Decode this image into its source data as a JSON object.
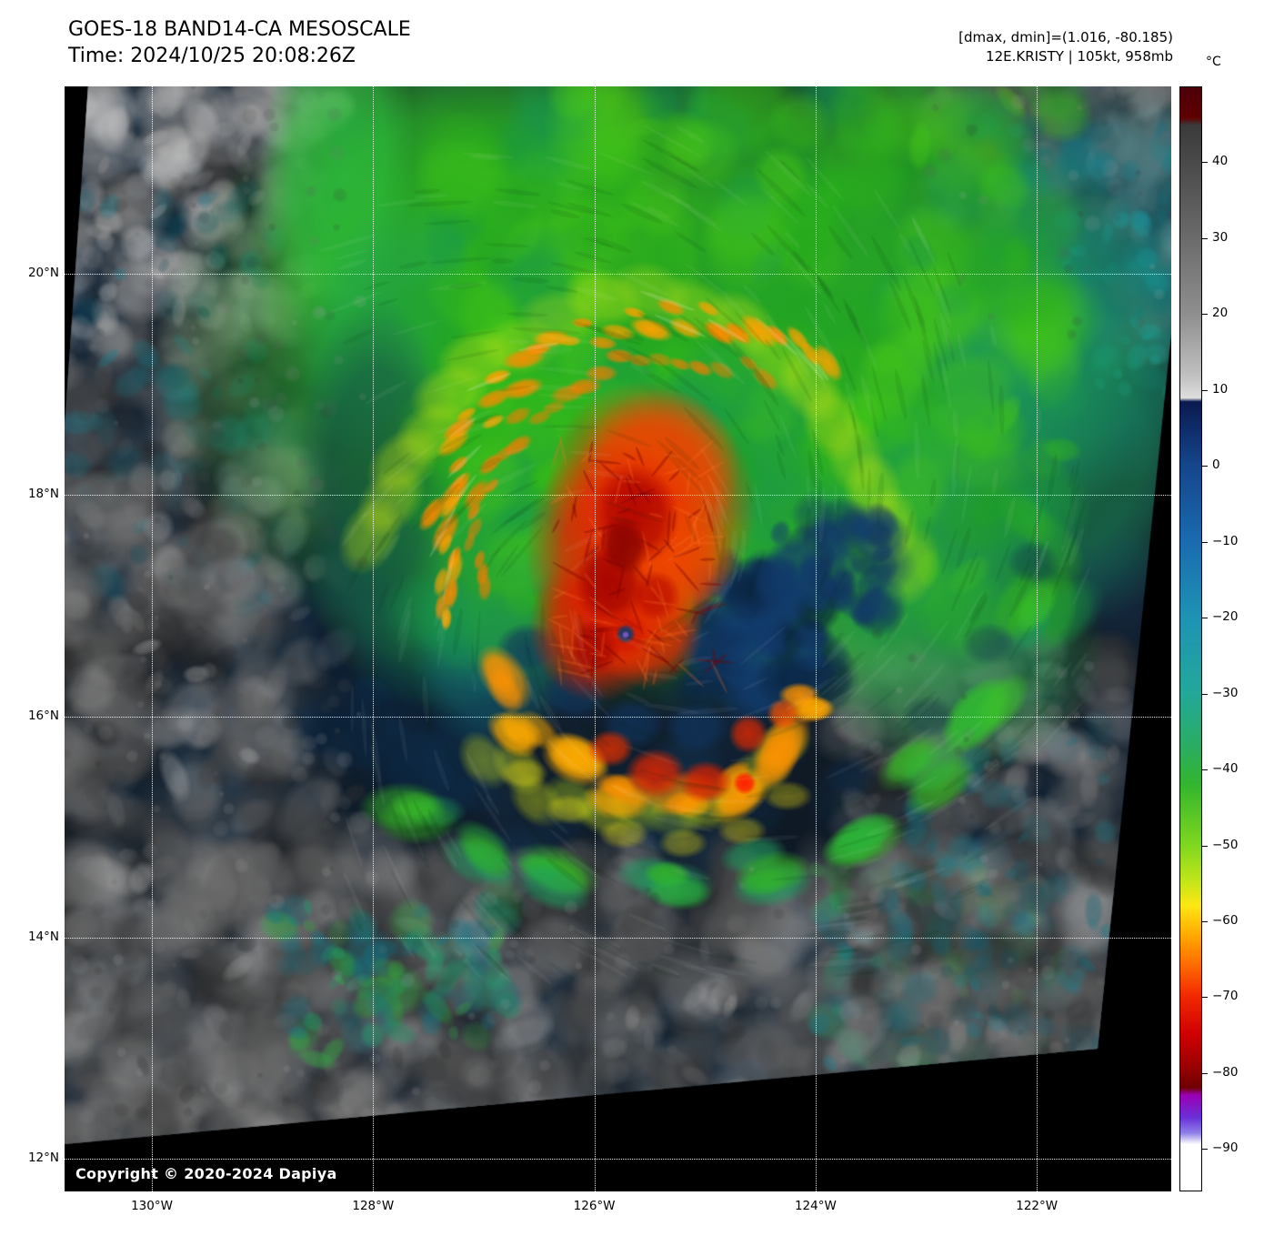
{
  "header": {
    "title": "GOES-18 BAND14-CA MESOSCALE",
    "time": "Time: 2024/10/25 20:08:26Z",
    "dmax_dmin": "[dmax, dmin]=(1.016, -80.185)",
    "storm": "12E.KRISTY | 105kt, 958mb"
  },
  "axes": {
    "lat_ticks": [
      {
        "value": 20,
        "label": "20°N"
      },
      {
        "value": 18,
        "label": "18°N"
      },
      {
        "value": 16,
        "label": "16°N"
      },
      {
        "value": 14,
        "label": "14°N"
      },
      {
        "value": 12,
        "label": "12°N"
      }
    ],
    "lon_ticks": [
      {
        "value": -130,
        "label": "130°W"
      },
      {
        "value": -128,
        "label": "128°W"
      },
      {
        "value": -126,
        "label": "126°W"
      },
      {
        "value": -124,
        "label": "124°W"
      },
      {
        "value": -122,
        "label": "122°W"
      }
    ]
  },
  "colorbar": {
    "unit": "°C",
    "domain": [
      50,
      -95.6
    ],
    "ticks": [
      40,
      30,
      20,
      10,
      0,
      -10,
      -20,
      -30,
      -40,
      -50,
      -60,
      -70,
      -80,
      -90
    ],
    "stops": [
      {
        "v": 50,
        "c": "#4a0008"
      },
      {
        "v": 46,
        "c": "#600000"
      },
      {
        "v": 45,
        "c": "#3a3a3a"
      },
      {
        "v": 40,
        "c": "#4a4a4a"
      },
      {
        "v": 30,
        "c": "#6b6b6b"
      },
      {
        "v": 20,
        "c": "#8f8f8f"
      },
      {
        "v": 12,
        "c": "#c0c0c0"
      },
      {
        "v": 9,
        "c": "#dedede"
      },
      {
        "v": 8.5,
        "c": "#0a1a50"
      },
      {
        "v": 0,
        "c": "#15468c"
      },
      {
        "v": -10,
        "c": "#1a6bb0"
      },
      {
        "v": -20,
        "c": "#1e93b4"
      },
      {
        "v": -30,
        "c": "#23a89a"
      },
      {
        "v": -37,
        "c": "#2aad62"
      },
      {
        "v": -42,
        "c": "#33b52e"
      },
      {
        "v": -50,
        "c": "#7ed71f"
      },
      {
        "v": -55,
        "c": "#c6e618"
      },
      {
        "v": -58,
        "c": "#ffe714"
      },
      {
        "v": -62,
        "c": "#ffa800"
      },
      {
        "v": -66,
        "c": "#ff6800"
      },
      {
        "v": -70,
        "c": "#f22800"
      },
      {
        "v": -75,
        "c": "#cf0000"
      },
      {
        "v": -79,
        "c": "#9e0000"
      },
      {
        "v": -82,
        "c": "#6f0000"
      },
      {
        "v": -83,
        "c": "#9a00b4"
      },
      {
        "v": -86,
        "c": "#6a30d8"
      },
      {
        "v": -88,
        "c": "#8f7fe8"
      },
      {
        "v": -89.5,
        "c": "#ffffff"
      },
      {
        "v": -95.6,
        "c": "#ffffff"
      }
    ]
  },
  "map": {
    "copyright": "Copyright © 2020-2024 Dapiya"
  }
}
